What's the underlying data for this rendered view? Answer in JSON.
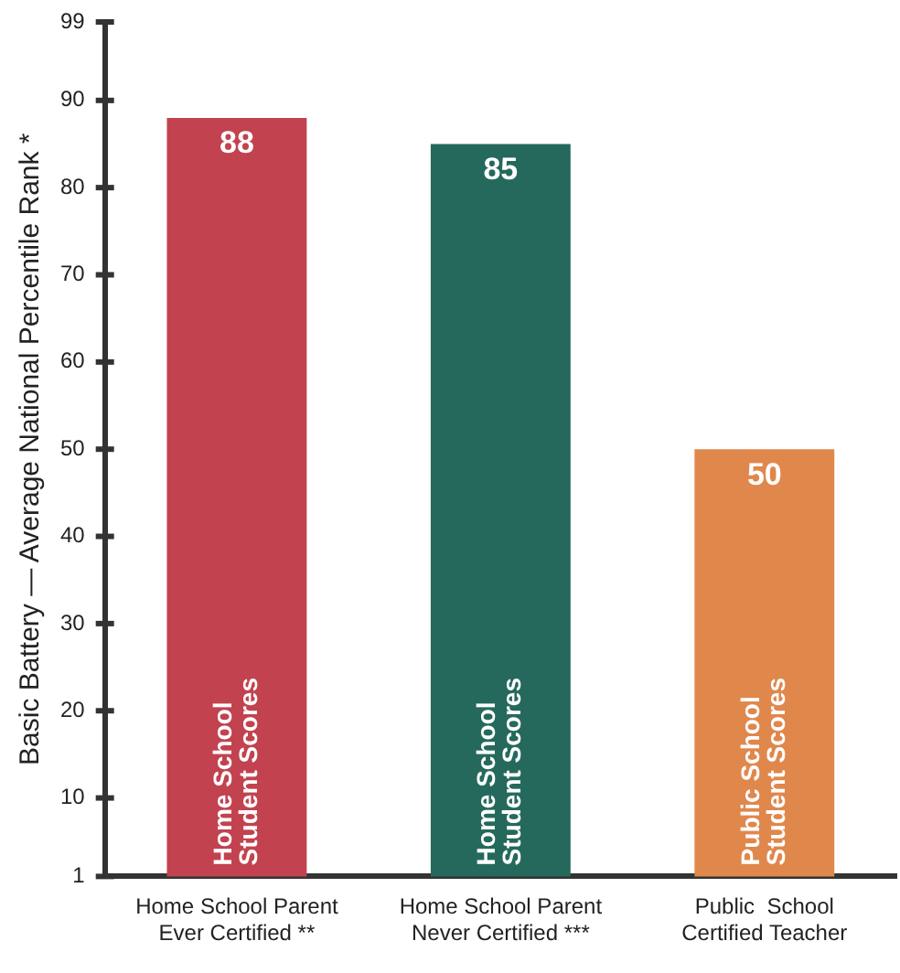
{
  "chart_data": {
    "type": "bar",
    "ylabel": "Basic Battery — Average National Percentile Rank *",
    "categories": [
      "Home School Parent\nEver Certified **",
      "Home School Parent\nNever Certified ***",
      "Public  School\nCertified Teacher"
    ],
    "values": [
      88,
      85,
      50
    ],
    "colors": [
      "#c2424f",
      "#25695c",
      "#e0874c"
    ],
    "ylim": [
      1,
      99
    ],
    "yticks": [
      1,
      10,
      20,
      30,
      40,
      50,
      60,
      70,
      80,
      90,
      99
    ],
    "data_labels": true,
    "annotations": [
      "Home School\nStudent Scores",
      "Home School\nStudent Scores",
      "Public School\nStudent Scores"
    ]
  }
}
